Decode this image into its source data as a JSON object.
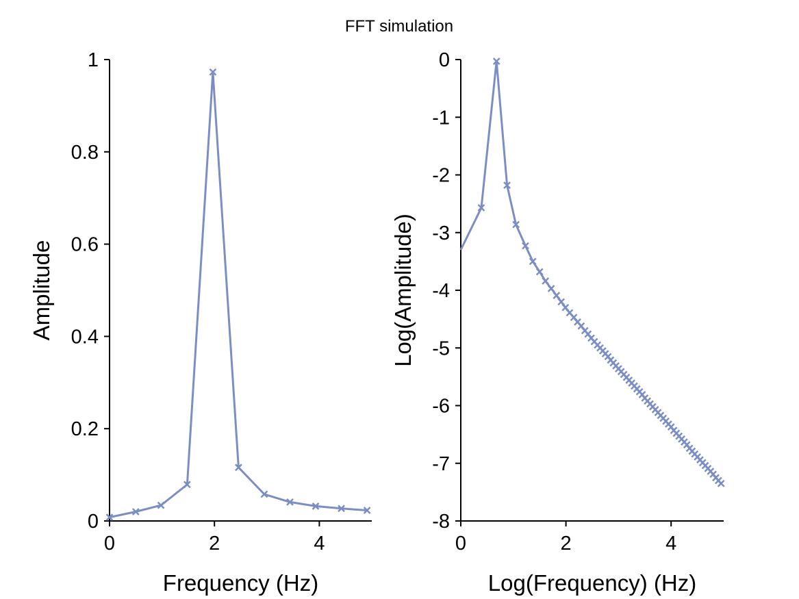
{
  "figure": {
    "title": "FFT simulation"
  },
  "style": {
    "line_color": "#7b8ec4",
    "marker": "x"
  },
  "chart_data": [
    {
      "type": "line",
      "xlabel": "Frequency (Hz)",
      "ylabel": "Amplitude",
      "xlim": [
        0,
        5
      ],
      "ylim": [
        0,
        1
      ],
      "xticks": [
        0,
        2,
        4
      ],
      "xtick_labels": [
        "0",
        "2",
        "4"
      ],
      "yticks": [
        0,
        0.2,
        0.4,
        0.6,
        0.8,
        1
      ],
      "ytick_labels": [
        "0",
        "0.2",
        "0.4",
        "0.6",
        "0.8",
        "1"
      ],
      "grid": false,
      "series": [
        {
          "x": [
            0,
            0.5,
            0.98,
            1.48,
            1.97,
            2.46,
            2.95,
            3.44,
            3.93,
            4.42,
            4.91
          ],
          "y": [
            0.008,
            0.02,
            0.034,
            0.079,
            0.973,
            0.116,
            0.058,
            0.041,
            0.032,
            0.027,
            0.023
          ]
        }
      ]
    },
    {
      "type": "line",
      "xlabel": "Log(Frequency) (Hz)",
      "ylabel": "Log(Amplitude)",
      "xlim": [
        0,
        5
      ],
      "ylim": [
        -8,
        0
      ],
      "xticks": [
        0,
        2,
        4
      ],
      "xtick_labels": [
        "0",
        "2",
        "4"
      ],
      "yticks": [
        0,
        -1,
        -2,
        -3,
        -4,
        -5,
        -6,
        -7,
        -8
      ],
      "ytick_labels": [
        "0",
        "-1",
        "-2",
        "-3",
        "-4",
        "-5",
        "-6",
        "-7",
        "-8"
      ],
      "grid": false,
      "series": [
        {
          "first_point": {
            "x": 0.0,
            "y": -3.3
          },
          "x": [
            0.39,
            0.68,
            0.88,
            1.05,
            1.23,
            1.37,
            1.5,
            1.61,
            1.72,
            1.82,
            1.91,
            1.99,
            2.07,
            2.15,
            2.22,
            2.29,
            2.36,
            2.42,
            2.48,
            2.54,
            2.6,
            2.65,
            2.7,
            2.75,
            2.8,
            2.85,
            2.9,
            2.95,
            3.0,
            3.05,
            3.1,
            3.15,
            3.2,
            3.25,
            3.3,
            3.35,
            3.4,
            3.45,
            3.5,
            3.55,
            3.6,
            3.65,
            3.7,
            3.75,
            3.8,
            3.85,
            3.9,
            3.95,
            4.0,
            4.05,
            4.1,
            4.15,
            4.2,
            4.25,
            4.3,
            4.35,
            4.4,
            4.45,
            4.5,
            4.55,
            4.6,
            4.65,
            4.7,
            4.75,
            4.8,
            4.85,
            4.9,
            4.95
          ],
          "y": [
            -2.57,
            -0.03,
            -2.18,
            -2.86,
            -3.23,
            -3.5,
            -3.68,
            -3.84,
            -3.97,
            -4.09,
            -4.2,
            -4.3,
            -4.39,
            -4.47,
            -4.55,
            -4.62,
            -4.7,
            -4.76,
            -4.83,
            -4.89,
            -4.95,
            -5.0,
            -5.05,
            -5.1,
            -5.15,
            -5.21,
            -5.26,
            -5.31,
            -5.36,
            -5.41,
            -5.46,
            -5.51,
            -5.56,
            -5.61,
            -5.66,
            -5.71,
            -5.76,
            -5.81,
            -5.87,
            -5.92,
            -5.97,
            -6.02,
            -6.07,
            -6.12,
            -6.17,
            -6.22,
            -6.27,
            -6.32,
            -6.37,
            -6.43,
            -6.48,
            -6.53,
            -6.58,
            -6.63,
            -6.68,
            -6.74,
            -6.79,
            -6.84,
            -6.89,
            -6.94,
            -6.99,
            -7.04,
            -7.09,
            -7.14,
            -7.19,
            -7.25,
            -7.3,
            -7.35
          ]
        }
      ]
    }
  ]
}
